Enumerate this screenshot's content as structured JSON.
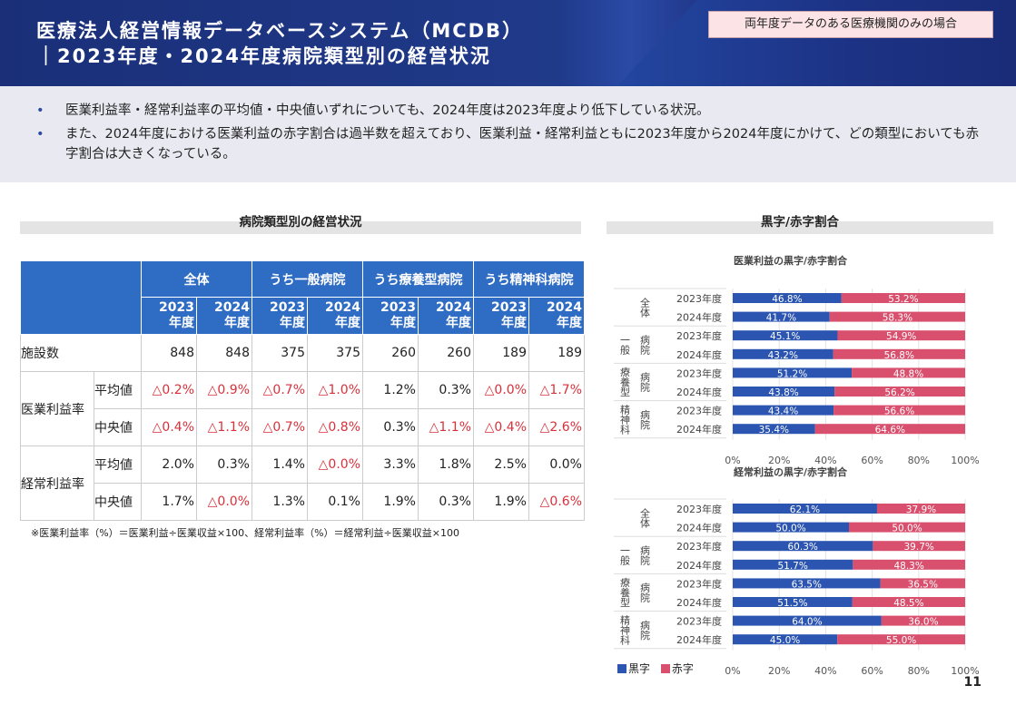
{
  "header": {
    "title_line1": "医療法人経営情報データベースシステム（MCDB）",
    "title_line2": "｜2023年度・2024年度病院類型別の経営状況",
    "badge": "両年度データのある医療機関のみの場合"
  },
  "bullets": [
    "医業利益率・経常利益率の平均値・中央値いずれについても、2024年度は2023年度より低下している状況。",
    "また、2024年度における医業利益の赤字割合は過半数を超えており、医業利益・経常利益ともに2023年度から2024年度にかけて、どの類型においても赤字割合は大きくなっている。"
  ],
  "table": {
    "section_title": "病院類型別の経営状況",
    "groups": [
      "全体",
      "うち一般病院",
      "うち療養型病院",
      "うち精神科病院"
    ],
    "year_top": "2023",
    "year_top2": "2024",
    "year_bottom": "年度",
    "facility_label": "施設数",
    "facility_counts": [
      "848",
      "848",
      "375",
      "375",
      "260",
      "260",
      "189",
      "189"
    ],
    "metrics": [
      {
        "label": "医業利益率",
        "rows": [
          {
            "label": "平均値",
            "values": [
              "△0.2%",
              "△0.9%",
              "△0.7%",
              "△1.0%",
              "1.2%",
              "0.3%",
              "△0.0%",
              "△1.7%"
            ]
          },
          {
            "label": "中央値",
            "values": [
              "△0.4%",
              "△1.1%",
              "△0.7%",
              "△0.8%",
              "0.3%",
              "△1.1%",
              "△0.4%",
              "△2.6%"
            ]
          }
        ]
      },
      {
        "label": "経常利益率",
        "rows": [
          {
            "label": "平均値",
            "values": [
              "2.0%",
              "0.3%",
              "1.4%",
              "△0.0%",
              "3.3%",
              "1.8%",
              "2.5%",
              "0.0%"
            ]
          },
          {
            "label": "中央値",
            "values": [
              "1.7%",
              "△0.0%",
              "1.3%",
              "0.1%",
              "1.9%",
              "0.3%",
              "1.9%",
              "△0.6%"
            ]
          }
        ]
      }
    ],
    "negative_color": "#d9303a",
    "note": "※医業利益率（%）＝医業利益÷医業収益×100、経常利益率（%）＝経常利益÷医業収益×100"
  },
  "charts_section_title": "黒字/赤字割合",
  "chart_data": [
    {
      "type": "bar",
      "stacked": true,
      "orientation": "horizontal",
      "title": "医業利益の黒字/赤字割合",
      "groups": [
        [
          "全体"
        ],
        [
          "一般",
          "病院"
        ],
        [
          "療養型",
          "病院"
        ],
        [
          "精神科",
          "病院"
        ]
      ],
      "categories": [
        "2023年度",
        "2024年度",
        "2023年度",
        "2024年度",
        "2023年度",
        "2024年度",
        "2023年度",
        "2024年度"
      ],
      "series": [
        {
          "name": "黒字",
          "color": "#2b55b0",
          "values": [
            46.8,
            41.7,
            45.1,
            43.2,
            51.2,
            43.8,
            43.4,
            35.4
          ]
        },
        {
          "name": "赤字",
          "color": "#d9506e",
          "values": [
            53.2,
            58.3,
            54.9,
            56.8,
            48.8,
            56.2,
            56.6,
            64.6
          ]
        }
      ],
      "xlim": [
        0,
        100
      ],
      "xticks": [
        "0%",
        "20%",
        "40%",
        "60%",
        "80%",
        "100%"
      ],
      "grid": true
    },
    {
      "type": "bar",
      "stacked": true,
      "orientation": "horizontal",
      "title": "経常利益の黒字/赤字割合",
      "groups": [
        [
          "全体"
        ],
        [
          "一般",
          "病院"
        ],
        [
          "療養型",
          "病院"
        ],
        [
          "精神科",
          "病院"
        ]
      ],
      "categories": [
        "2023年度",
        "2024年度",
        "2023年度",
        "2024年度",
        "2023年度",
        "2024年度",
        "2023年度",
        "2024年度"
      ],
      "series": [
        {
          "name": "黒字",
          "color": "#2b55b0",
          "values": [
            62.1,
            50.0,
            60.3,
            51.7,
            63.5,
            51.5,
            64.0,
            45.0
          ]
        },
        {
          "name": "赤字",
          "color": "#d9506e",
          "values": [
            37.9,
            50.0,
            39.7,
            48.3,
            36.5,
            48.5,
            36.0,
            55.0
          ]
        }
      ],
      "xlim": [
        0,
        100
      ],
      "xticks": [
        "0%",
        "20%",
        "40%",
        "60%",
        "80%",
        "100%"
      ],
      "grid": true,
      "legend": "bottom-left"
    }
  ],
  "legend": [
    "黒字",
    "赤字"
  ],
  "page_number": "11"
}
